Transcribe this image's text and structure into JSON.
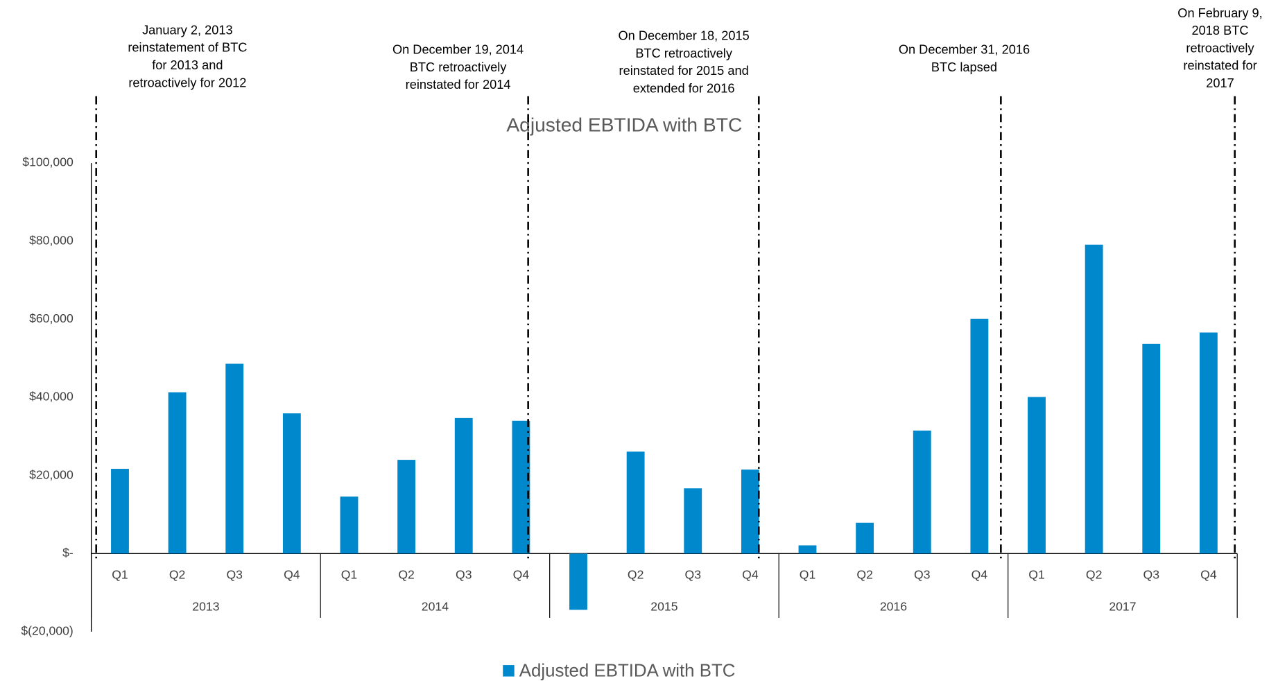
{
  "chart_data": {
    "type": "bar",
    "title": "Adjusted EBTIDA with BTC",
    "categories": [
      "Q1",
      "Q2",
      "Q3",
      "Q4",
      "Q1",
      "Q2",
      "Q3",
      "Q4",
      "Q1",
      "Q2",
      "Q3",
      "Q4",
      "Q1",
      "Q2",
      "Q3",
      "Q4",
      "Q1",
      "Q2",
      "Q3",
      "Q4"
    ],
    "groups": [
      "2013",
      "2014",
      "2015",
      "2016",
      "2017"
    ],
    "series": [
      {
        "name": "Adjusted EBTIDA with BTC",
        "color": "#0088cc",
        "values": [
          21700,
          41300,
          48600,
          35900,
          14600,
          24000,
          34700,
          34000,
          -14400,
          26100,
          16700,
          21500,
          2100,
          7900,
          31500,
          60100,
          40100,
          79100,
          53700,
          56600
        ]
      }
    ],
    "ylim": [
      -20000,
      100000
    ],
    "yticks": [
      {
        "value": -20000,
        "label": "$(20,000)"
      },
      {
        "value": 0,
        "label": "$-"
      },
      {
        "value": 20000,
        "label": "$20,000"
      },
      {
        "value": 40000,
        "label": "$40,000"
      },
      {
        "value": 60000,
        "label": "$60,000"
      },
      {
        "value": 80000,
        "label": "$80,000"
      },
      {
        "value": 100000,
        "label": "$100,000"
      }
    ],
    "grid": false,
    "legend": "bottom",
    "annotations": [
      [
        "January 2, 2013",
        "reinstatement of BTC",
        "for 2013 and",
        "retroactively for 2012"
      ],
      [
        "On December 19, 2014",
        "BTC retroactively",
        "reinstated for 2014"
      ],
      [
        "On December 18, 2015",
        "BTC retroactively",
        "reinstated for 2015 and",
        "extended for 2016"
      ],
      [
        "On December 31, 2016",
        "BTC lapsed"
      ],
      [
        "On February 9,",
        "2018 BTC",
        "retroactively",
        "reinstated for",
        "2017"
      ]
    ]
  }
}
